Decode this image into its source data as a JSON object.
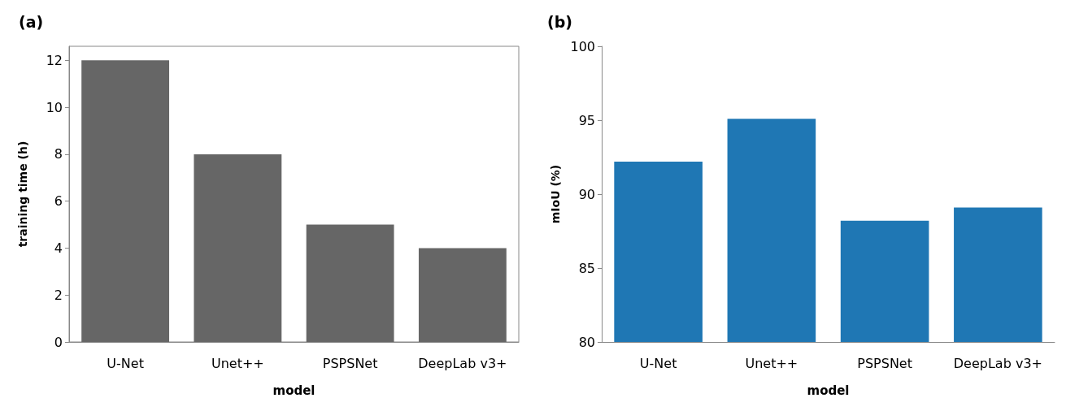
{
  "chart_data": [
    {
      "type": "bar",
      "title": "(a)",
      "xlabel": "model",
      "ylabel": "training time (h)",
      "categories": [
        "U-Net",
        "Unet++",
        "PSPSNet",
        "DeepLab v3+"
      ],
      "values": [
        12,
        8,
        5,
        4
      ],
      "color": "#666666",
      "ylim": [
        0,
        12.6
      ],
      "yticks": [
        0,
        2,
        4,
        6,
        8,
        10,
        12
      ],
      "grid": false
    },
    {
      "type": "bar",
      "title": "(b)",
      "xlabel": "model",
      "ylabel": "mIoU (%)",
      "categories": [
        "U-Net",
        "Unet++",
        "PSPSNet",
        "DeepLab v3+"
      ],
      "values": [
        92.2,
        95.1,
        88.2,
        89.1
      ],
      "color": "#1f77b4",
      "ylim": [
        80,
        100
      ],
      "yticks": [
        80,
        85,
        90,
        95,
        100
      ],
      "grid": false
    }
  ]
}
